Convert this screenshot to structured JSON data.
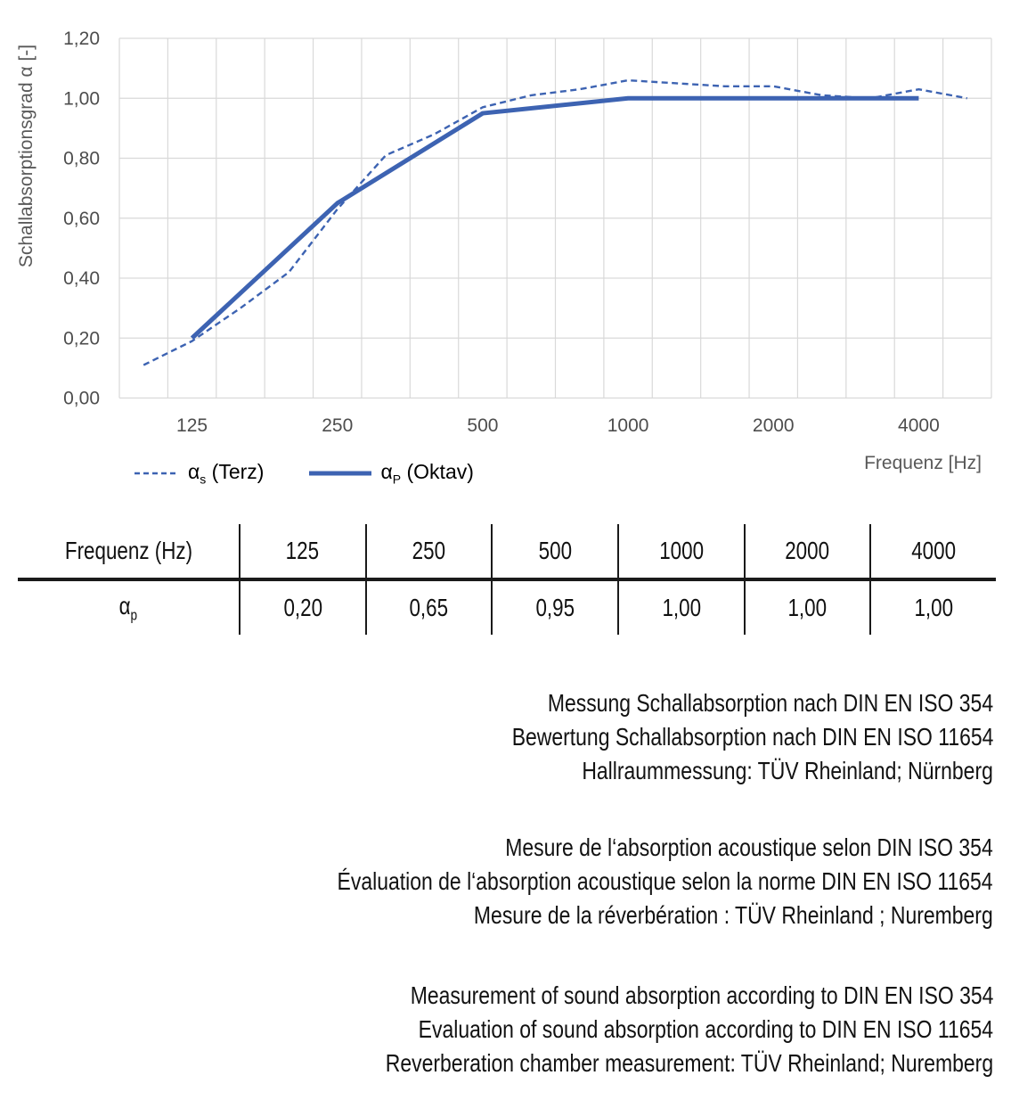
{
  "chart_data": {
    "type": "line",
    "title": "",
    "ylabel": "Schallabsorptionsgrad α [-]",
    "xlabel": "Frequenz [Hz]",
    "ylim": [
      0,
      1.2
    ],
    "y_tick_labels": [
      "0,00",
      "0,20",
      "0,40",
      "0,60",
      "0,80",
      "1,00",
      "1,20"
    ],
    "x_scale": "logarithmic (third-octave band categories)",
    "x_categories": [
      "100",
      "125",
      "160",
      "200",
      "250",
      "315",
      "400",
      "500",
      "630",
      "800",
      "1000",
      "1250",
      "1600",
      "2000",
      "2500",
      "3150",
      "4000",
      "5000"
    ],
    "x_tick_labels": [
      "125",
      "250",
      "500",
      "1000",
      "2000",
      "4000"
    ],
    "grid": true,
    "line_color": "#3d63b2",
    "gridline_color": "#d9d9d9",
    "tick_color": "#4d4d4d",
    "axis_title_color": "#595959",
    "legend_position": "bottom-left",
    "series": [
      {
        "name": "αs (Terz)",
        "legend": {
          "alpha": "α",
          "sub": "s",
          "rest": " (Terz)"
        },
        "line_style": "dashed",
        "x": [
          "100",
          "125",
          "160",
          "200",
          "250",
          "315",
          "400",
          "500",
          "630",
          "800",
          "1000",
          "1250",
          "1600",
          "2000",
          "2500",
          "3150",
          "4000",
          "5000"
        ],
        "values": [
          0.11,
          0.19,
          0.3,
          0.42,
          0.63,
          0.81,
          0.88,
          0.97,
          1.01,
          1.03,
          1.06,
          1.05,
          1.04,
          1.04,
          1.01,
          1.0,
          1.03,
          1.0
        ]
      },
      {
        "name": "αP (Oktav)",
        "legend": {
          "alpha": "α",
          "sub": "P",
          "rest": " (Oktav)"
        },
        "line_style": "solid",
        "x": [
          "125",
          "250",
          "500",
          "1000",
          "2000",
          "4000"
        ],
        "values": [
          0.2,
          0.65,
          0.95,
          1.0,
          1.0,
          1.0
        ]
      }
    ]
  },
  "table": {
    "header_label": "Frequenz (Hz)",
    "frequencies": [
      "125",
      "250",
      "500",
      "1000",
      "2000",
      "4000"
    ],
    "row_label": {
      "alpha": "α",
      "sub": "p"
    },
    "values": [
      "0,20",
      "0,65",
      "0,95",
      "1,00",
      "1,00",
      "1,00"
    ]
  },
  "notes": {
    "de": [
      "Messung Schallabsorption nach DIN EN ISO 354",
      "Bewertung Schallabsorption nach DIN EN ISO 11654",
      "Hallraummessung: TÜV Rheinland; Nürnberg"
    ],
    "fr": [
      "Mesure de l‘absorption acoustique selon DIN ISO 354",
      "Évaluation de l‘absorption acoustique selon la norme DIN EN ISO 11654",
      "Mesure de la réverbération : TÜV Rheinland ; Nuremberg"
    ],
    "en": [
      "Measurement of sound absorption according to DIN EN ISO 354",
      "Evaluation of sound absorption according to DIN EN ISO 11654",
      "Reverberation chamber measurement: TÜV Rheinland; Nuremberg"
    ]
  }
}
